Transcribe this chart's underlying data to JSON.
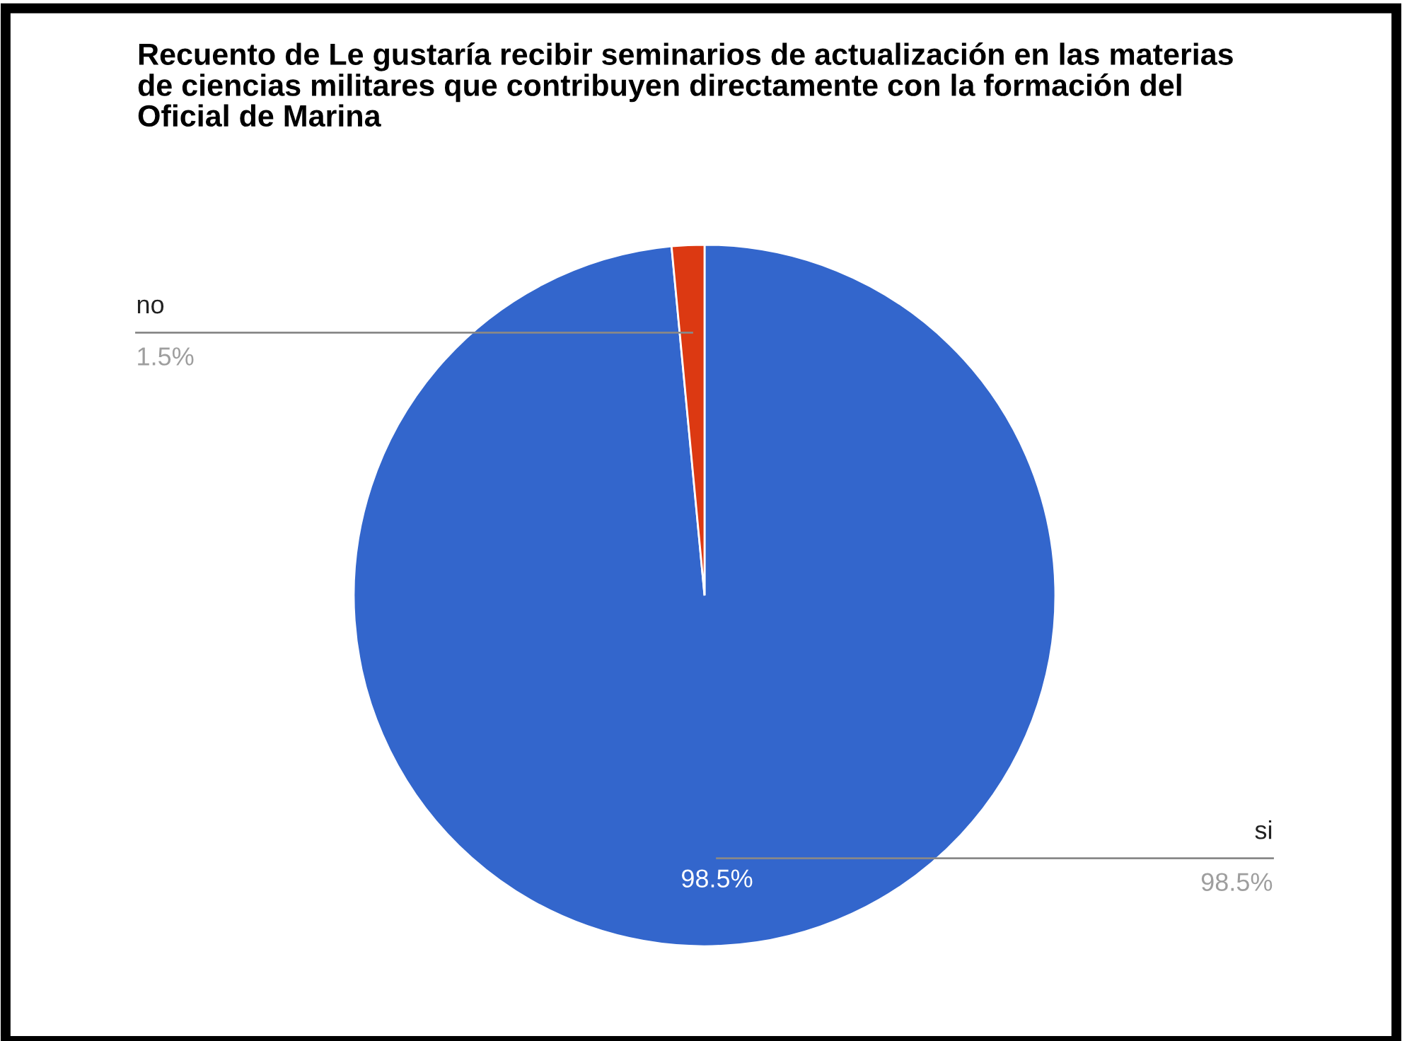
{
  "chart_data": {
    "type": "pie",
    "title": "Recuento de Le gustaría recibir seminarios de actualización en las materias de ciencias militares que contribuyen directamente con la formación del Oficial de Marina",
    "categories": [
      "si",
      "no"
    ],
    "values": [
      98.5,
      1.5
    ],
    "colors": [
      "#3366cc",
      "#dc3912"
    ],
    "value_labels": [
      "98.5%",
      "1.5%"
    ],
    "annotations": [
      {
        "text": "98.5%",
        "x": "si"
      }
    ]
  }
}
